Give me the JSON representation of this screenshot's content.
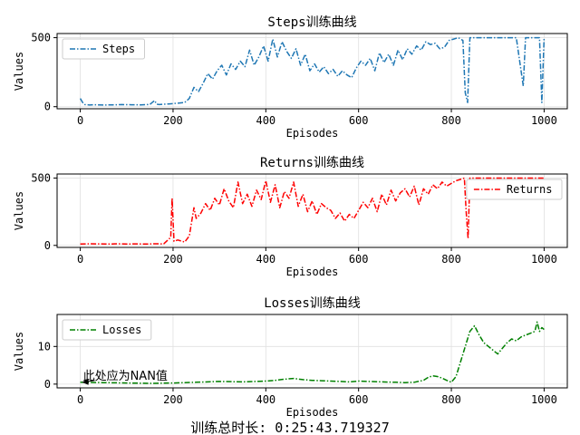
{
  "footer_text": "训练总时长: 0:25:43.719327",
  "annotation_text": "此处应为NAN值",
  "chart_data": [
    {
      "type": "line",
      "title": "Steps训练曲线",
      "xlabel": "Episodes",
      "ylabel": "Values",
      "xlim": [
        -50,
        1050
      ],
      "ylim": [
        -15,
        530
      ],
      "xticks": [
        0,
        200,
        400,
        600,
        800,
        1000
      ],
      "yticks": [
        0,
        500
      ],
      "grid": true,
      "legend_position": "upper-left",
      "series": [
        {
          "name": "Steps",
          "color": "#1f77b4",
          "linestyle": "dashdot",
          "x": [
            0,
            5,
            10,
            20,
            30,
            50,
            70,
            90,
            110,
            130,
            150,
            160,
            165,
            170,
            190,
            210,
            225,
            235,
            245,
            255,
            265,
            275,
            285,
            295,
            305,
            315,
            325,
            335,
            345,
            355,
            365,
            375,
            385,
            395,
            405,
            415,
            425,
            435,
            445,
            455,
            465,
            475,
            485,
            495,
            505,
            515,
            525,
            535,
            545,
            555,
            565,
            575,
            585,
            595,
            605,
            615,
            625,
            635,
            645,
            655,
            665,
            675,
            685,
            695,
            705,
            715,
            725,
            735,
            745,
            755,
            765,
            775,
            785,
            795,
            805,
            815,
            825,
            830,
            835,
            840,
            860,
            880,
            900,
            920,
            940,
            955,
            960,
            970,
            990,
            995,
            1000
          ],
          "y": [
            60,
            30,
            15,
            12,
            14,
            12,
            13,
            15,
            14,
            13,
            16,
            45,
            18,
            15,
            20,
            25,
            30,
            60,
            140,
            110,
            170,
            240,
            200,
            260,
            300,
            230,
            310,
            270,
            330,
            290,
            410,
            300,
            360,
            440,
            330,
            490,
            360,
            470,
            400,
            350,
            420,
            300,
            380,
            260,
            310,
            250,
            290,
            240,
            270,
            220,
            260,
            230,
            210,
            280,
            330,
            300,
            350,
            260,
            390,
            320,
            380,
            300,
            410,
            340,
            420,
            380,
            440,
            410,
            470,
            450,
            460,
            420,
            430,
            480,
            490,
            500,
            480,
            100,
            30,
            500,
            500,
            500,
            500,
            500,
            500,
            150,
            500,
            500,
            500,
            30,
            500
          ]
        }
      ]
    },
    {
      "type": "line",
      "title": "Returns训练曲线",
      "xlabel": "Episodes",
      "ylabel": "Values",
      "xlim": [
        -50,
        1050
      ],
      "ylim": [
        -15,
        530
      ],
      "xticks": [
        0,
        200,
        400,
        600,
        800,
        1000
      ],
      "yticks": [
        0,
        500
      ],
      "grid": true,
      "legend_position": "upper-right",
      "series": [
        {
          "name": "Returns",
          "color": "#ff0000",
          "linestyle": "dashdot",
          "x": [
            0,
            20,
            40,
            60,
            80,
            100,
            120,
            140,
            160,
            180,
            195,
            198,
            202,
            210,
            225,
            235,
            245,
            250,
            260,
            270,
            280,
            290,
            300,
            310,
            320,
            330,
            340,
            350,
            360,
            370,
            380,
            390,
            400,
            410,
            420,
            430,
            440,
            450,
            460,
            470,
            480,
            490,
            500,
            510,
            520,
            530,
            540,
            550,
            560,
            570,
            580,
            590,
            600,
            610,
            620,
            630,
            640,
            650,
            660,
            670,
            680,
            690,
            700,
            710,
            720,
            730,
            740,
            750,
            760,
            770,
            780,
            790,
            800,
            810,
            820,
            828,
            832,
            836,
            840,
            880,
            920,
            960,
            1000
          ],
          "y": [
            10,
            12,
            11,
            10,
            12,
            10,
            11,
            10,
            12,
            11,
            60,
            350,
            30,
            40,
            25,
            70,
            280,
            200,
            240,
            310,
            260,
            350,
            300,
            420,
            330,
            280,
            470,
            310,
            380,
            290,
            410,
            340,
            480,
            320,
            450,
            280,
            400,
            350,
            470,
            290,
            380,
            250,
            330,
            230,
            310,
            280,
            260,
            200,
            240,
            180,
            230,
            200,
            260,
            320,
            280,
            350,
            250,
            380,
            300,
            410,
            330,
            390,
            420,
            360,
            440,
            300,
            420,
            380,
            450,
            420,
            470,
            440,
            460,
            480,
            490,
            500,
            250,
            50,
            500,
            500,
            500,
            500,
            500
          ]
        }
      ]
    },
    {
      "type": "line",
      "title": "Losses训练曲线",
      "xlabel": "Episodes",
      "ylabel": "Values",
      "xlim": [
        -50,
        1050
      ],
      "ylim": [
        -1,
        18.5
      ],
      "xticks": [
        0,
        200,
        400,
        600,
        800,
        1000
      ],
      "yticks": [
        0,
        10
      ],
      "grid": true,
      "legend_position": "upper-left",
      "series": [
        {
          "name": "Losses",
          "color": "#008000",
          "linestyle": "dashdot",
          "x": [
            0,
            50,
            100,
            150,
            200,
            250,
            300,
            350,
            400,
            420,
            440,
            460,
            480,
            500,
            520,
            540,
            560,
            580,
            600,
            620,
            650,
            680,
            700,
            720,
            740,
            750,
            760,
            770,
            780,
            790,
            800,
            810,
            820,
            830,
            840,
            850,
            860,
            870,
            880,
            890,
            900,
            910,
            920,
            930,
            940,
            950,
            960,
            970,
            980,
            985,
            990,
            995,
            1000
          ],
          "y": [
            0.5,
            0.4,
            0.3,
            0.2,
            0.3,
            0.5,
            0.7,
            0.6,
            0.8,
            1.0,
            1.3,
            1.5,
            1.2,
            1.0,
            0.9,
            0.8,
            0.7,
            0.6,
            0.8,
            0.7,
            0.6,
            0.5,
            0.4,
            0.5,
            1.0,
            1.8,
            2.2,
            2.0,
            1.6,
            1.0,
            0.5,
            2.0,
            6.0,
            10.0,
            14.0,
            15.5,
            13.0,
            11.0,
            10.0,
            9.0,
            8.0,
            9.5,
            11.0,
            12.0,
            11.5,
            12.5,
            13.0,
            13.5,
            14.0,
            16.5,
            14.0,
            15.0,
            14.5
          ]
        }
      ]
    }
  ]
}
